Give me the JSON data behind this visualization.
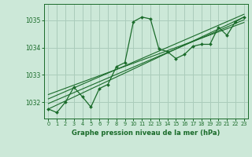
{
  "title": "Graphe pression niveau de la mer (hPa)",
  "background_color": "#cce8d8",
  "grid_color": "#aaccbb",
  "line_color": "#1a6b2a",
  "xlim": [
    -0.5,
    23.5
  ],
  "ylim": [
    1031.4,
    1035.6
  ],
  "yticks": [
    1032,
    1033,
    1034,
    1035
  ],
  "xticks": [
    0,
    1,
    2,
    3,
    4,
    5,
    6,
    7,
    8,
    9,
    10,
    11,
    12,
    13,
    14,
    15,
    16,
    17,
    18,
    19,
    20,
    21,
    22,
    23
  ],
  "main_series": {
    "x": [
      0,
      1,
      2,
      3,
      4,
      5,
      6,
      7,
      8,
      9,
      10,
      11,
      12,
      13,
      14,
      15,
      16,
      17,
      18,
      19,
      20,
      21,
      22,
      23
    ],
    "y": [
      1031.75,
      1031.62,
      1032.0,
      1032.55,
      1032.2,
      1031.82,
      1032.5,
      1032.65,
      1033.3,
      1033.45,
      1034.95,
      1035.12,
      1035.05,
      1033.95,
      1033.85,
      1033.6,
      1033.75,
      1034.05,
      1034.12,
      1034.12,
      1034.75,
      1034.45,
      1034.95,
      1035.12
    ]
  },
  "trend_lines": [
    {
      "x": [
        0,
        23
      ],
      "y": [
        1031.75,
        1035.12
      ]
    },
    {
      "x": [
        0,
        23
      ],
      "y": [
        1031.95,
        1035.02
      ]
    },
    {
      "x": [
        0,
        23
      ],
      "y": [
        1032.12,
        1035.22
      ]
    },
    {
      "x": [
        0,
        23
      ],
      "y": [
        1032.28,
        1034.92
      ]
    }
  ]
}
